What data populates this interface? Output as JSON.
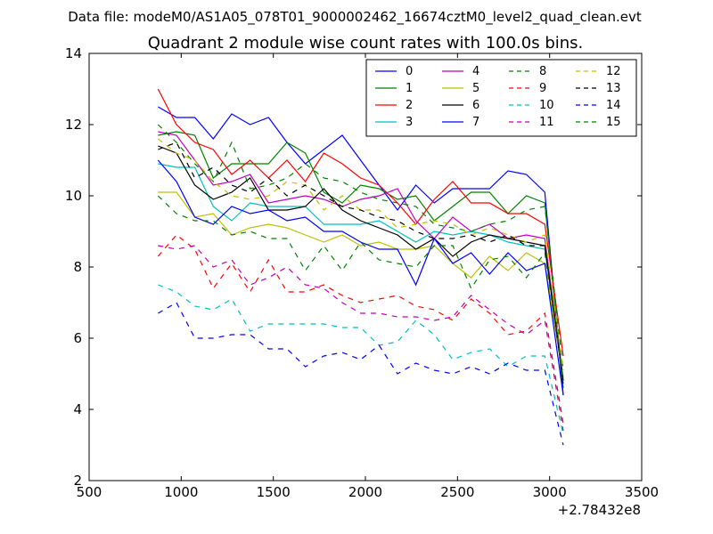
{
  "header": {
    "data_file": "Data file: modeM0/AS1A05_078T01_9000002462_16674cztM0_level2_quad_clean.evt"
  },
  "chart_data": {
    "type": "line",
    "title": "Quadrant 2 module wise count rates with 100.0s bins.",
    "xlabel": "",
    "ylabel": "",
    "x_offset_label": "+2.78432e8",
    "xlim": [
      500,
      3500
    ],
    "ylim": [
      2,
      14
    ],
    "xticks": [
      500,
      1000,
      1500,
      2000,
      2500,
      3000,
      3500
    ],
    "yticks": [
      2,
      4,
      6,
      8,
      10,
      12,
      14
    ],
    "x_tick_labels": [
      "500",
      "1000",
      "1500",
      "2000",
      "2500",
      "3000",
      "3500"
    ],
    "y_tick_labels": [
      "2",
      "4",
      "6",
      "8",
      "10",
      "12",
      "14"
    ],
    "grid": false,
    "legend": {
      "placement": "top-right",
      "columns": 4
    },
    "x": [
      874,
      974,
      1074,
      1174,
      1274,
      1374,
      1474,
      1574,
      1674,
      1774,
      1874,
      1974,
      2074,
      2174,
      2274,
      2374,
      2474,
      2574,
      2674,
      2774,
      2874,
      2974,
      3074
    ],
    "series": [
      {
        "name": "0",
        "color": "#0000ff",
        "dash": "solid",
        "values": [
          12.5,
          12.2,
          12.2,
          11.6,
          12.3,
          12.0,
          12.2,
          11.5,
          10.9,
          11.3,
          11.7,
          11.0,
          10.3,
          9.6,
          10.3,
          9.8,
          10.2,
          10.2,
          10.2,
          10.7,
          10.6,
          10.1,
          4.4
        ]
      },
      {
        "name": "1",
        "color": "#008000",
        "dash": "solid",
        "values": [
          11.7,
          11.8,
          11.7,
          10.5,
          10.9,
          10.9,
          10.9,
          11.5,
          11.2,
          10.1,
          9.8,
          10.3,
          10.2,
          9.9,
          10.0,
          9.3,
          9.7,
          10.1,
          10.1,
          9.5,
          10.0,
          9.8,
          4.6
        ]
      },
      {
        "name": "2",
        "color": "#ff0000",
        "dash": "solid",
        "values": [
          13.0,
          12.0,
          11.5,
          11.3,
          10.6,
          11.0,
          10.5,
          11.0,
          10.4,
          11.2,
          10.9,
          10.5,
          10.3,
          9.8,
          9.2,
          9.9,
          10.4,
          9.8,
          9.8,
          9.5,
          9.5,
          9.2,
          5.5
        ]
      },
      {
        "name": "3",
        "color": "#00bfbf",
        "dash": "solid",
        "values": [
          10.9,
          10.8,
          10.8,
          9.7,
          9.3,
          9.8,
          9.7,
          9.7,
          9.7,
          9.2,
          9.2,
          9.2,
          9.3,
          9.0,
          8.7,
          9.0,
          8.9,
          9.0,
          8.9,
          8.7,
          8.6,
          8.5,
          4.9
        ]
      },
      {
        "name": "4",
        "color": "#bf00bf",
        "dash": "solid",
        "values": [
          11.8,
          11.7,
          11.0,
          10.3,
          10.4,
          10.6,
          9.8,
          9.9,
          10.0,
          9.9,
          9.7,
          9.9,
          10.0,
          10.2,
          9.3,
          8.8,
          9.4,
          9.0,
          9.2,
          8.8,
          8.9,
          8.8,
          4.8
        ]
      },
      {
        "name": "5",
        "color": "#bfbf00",
        "dash": "solid",
        "values": [
          10.1,
          10.1,
          9.4,
          9.5,
          8.9,
          9.1,
          9.2,
          9.1,
          8.9,
          8.7,
          8.9,
          8.6,
          8.7,
          8.5,
          8.5,
          8.6,
          8.1,
          7.7,
          8.3,
          7.9,
          8.4,
          8.1,
          4.9
        ]
      },
      {
        "name": "6",
        "color": "#000000",
        "dash": "solid",
        "values": [
          11.4,
          11.2,
          10.3,
          9.9,
          10.1,
          10.5,
          9.6,
          9.6,
          9.7,
          10.2,
          9.6,
          9.3,
          9.1,
          8.9,
          8.5,
          8.8,
          8.3,
          8.7,
          8.9,
          8.8,
          8.7,
          8.6,
          4.8
        ]
      },
      {
        "name": "7",
        "color": "#0000ff",
        "dash": "solid",
        "values": [
          11.0,
          10.4,
          9.4,
          9.2,
          9.7,
          9.5,
          9.6,
          9.3,
          9.4,
          9.0,
          9.0,
          8.7,
          8.5,
          8.5,
          7.5,
          8.8,
          8.1,
          8.4,
          7.8,
          8.4,
          7.9,
          8.1,
          4.4
        ]
      },
      {
        "name": "8",
        "color": "#008000",
        "dash": "dashed",
        "values": [
          12.0,
          11.5,
          10.9,
          10.4,
          11.5,
          10.2,
          10.3,
          10.5,
          10.9,
          10.5,
          10.4,
          10.1,
          9.9,
          9.8,
          9.7,
          9.2,
          9.1,
          9.0,
          9.2,
          9.3,
          9.6,
          9.7,
          5.1
        ]
      },
      {
        "name": "9",
        "color": "#ff0000",
        "dash": "dashed",
        "values": [
          8.3,
          8.9,
          8.5,
          7.4,
          8.1,
          7.3,
          8.2,
          7.3,
          7.3,
          7.5,
          7.2,
          7.0,
          7.1,
          7.2,
          6.9,
          6.8,
          6.5,
          7.1,
          6.7,
          6.1,
          6.2,
          6.7,
          3.6
        ]
      },
      {
        "name": "10",
        "color": "#00bfbf",
        "dash": "dashed",
        "values": [
          7.5,
          7.3,
          6.9,
          6.8,
          7.1,
          6.2,
          6.4,
          6.4,
          6.4,
          6.4,
          6.3,
          6.3,
          5.8,
          5.9,
          6.5,
          6.1,
          5.4,
          5.6,
          5.7,
          5.2,
          5.5,
          5.5,
          3.3
        ]
      },
      {
        "name": "11",
        "color": "#bf00bf",
        "dash": "dashed",
        "values": [
          8.6,
          8.5,
          8.6,
          8.0,
          8.2,
          7.5,
          7.7,
          8.0,
          7.5,
          7.4,
          7.0,
          6.7,
          6.7,
          6.6,
          6.6,
          6.5,
          6.6,
          7.2,
          6.8,
          6.4,
          6.1,
          6.5,
          3.4
        ]
      },
      {
        "name": "12",
        "color": "#bfbf00",
        "dash": "dashed",
        "values": [
          11.6,
          11.2,
          11.0,
          10.4,
          10.0,
          9.9,
          10.0,
          10.4,
          10.3,
          9.6,
          10.0,
          9.6,
          9.6,
          9.1,
          9.2,
          9.3,
          9.2,
          8.9,
          9.1,
          8.9,
          8.7,
          8.9,
          5.1
        ]
      },
      {
        "name": "13",
        "color": "#000000",
        "dash": "dashed",
        "values": [
          11.3,
          11.5,
          10.5,
          10.8,
          10.3,
          10.1,
          10.5,
          10.0,
          10.3,
          10.0,
          9.7,
          9.6,
          9.4,
          9.3,
          9.0,
          8.8,
          8.8,
          8.9,
          8.7,
          8.9,
          8.6,
          8.6,
          4.7
        ]
      },
      {
        "name": "14",
        "color": "#0000ff",
        "dash": "dashed",
        "values": [
          6.7,
          7.0,
          6.0,
          6.0,
          6.1,
          6.1,
          5.7,
          5.7,
          5.2,
          5.5,
          5.6,
          5.4,
          5.8,
          5.0,
          5.3,
          5.1,
          5.0,
          5.2,
          5.0,
          5.3,
          5.1,
          5.1,
          3.0
        ]
      },
      {
        "name": "15",
        "color": "#008000",
        "dash": "dashed",
        "values": [
          10.0,
          9.5,
          9.3,
          9.3,
          8.9,
          9.0,
          8.8,
          8.8,
          7.9,
          8.6,
          7.9,
          8.7,
          8.2,
          8.1,
          8.0,
          8.6,
          8.6,
          7.4,
          8.2,
          8.3,
          7.7,
          8.4,
          4.8
        ]
      }
    ]
  }
}
